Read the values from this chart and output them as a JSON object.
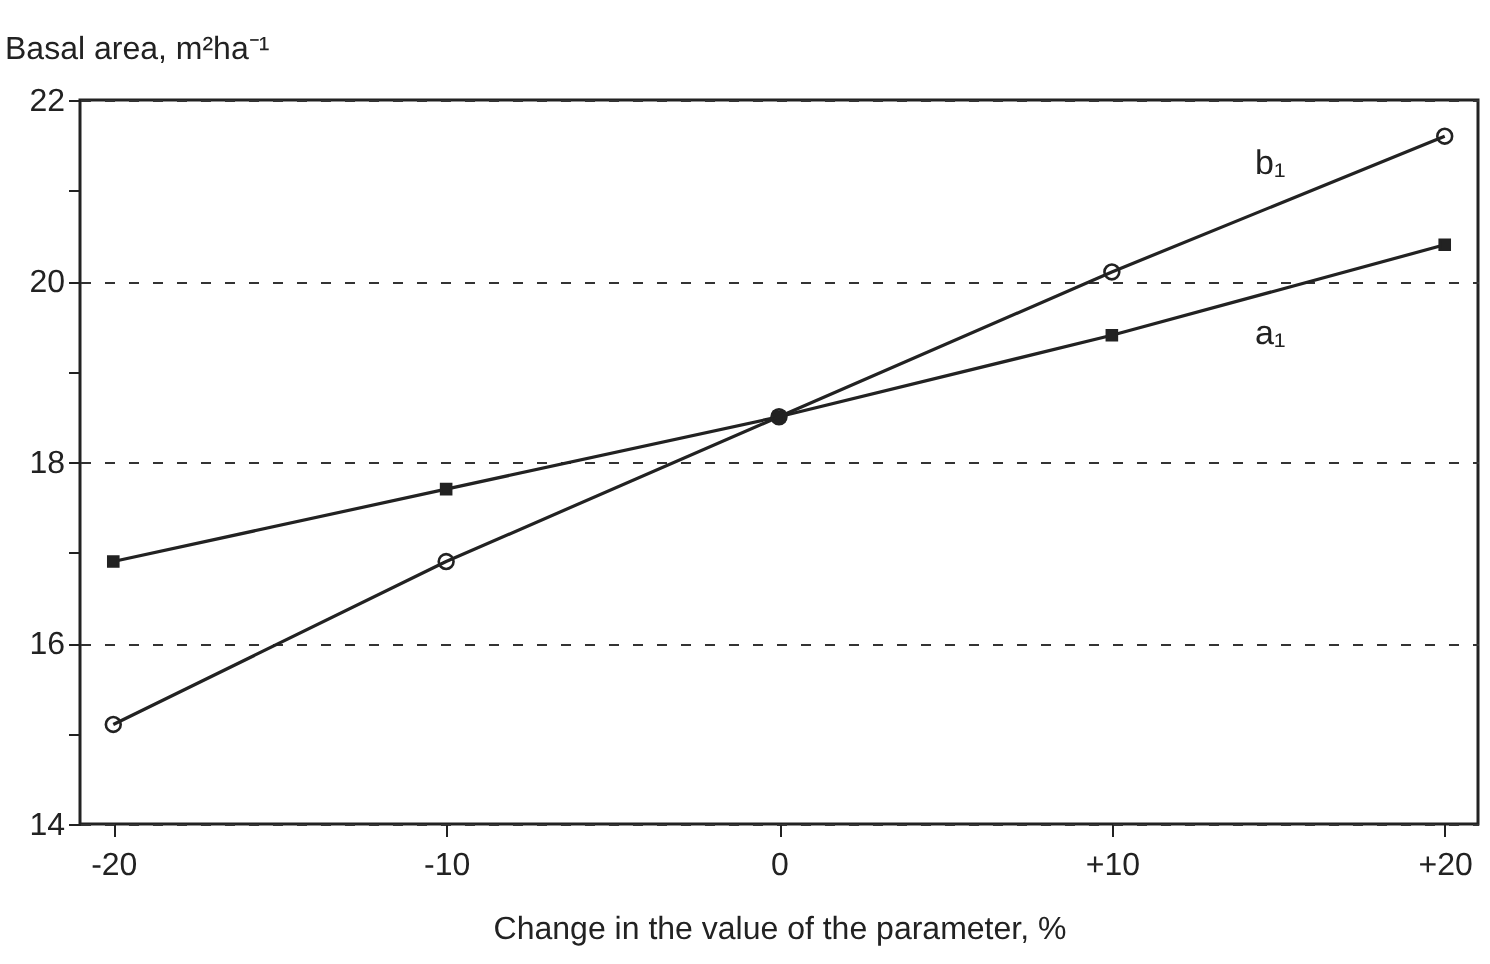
{
  "chart_data": {
    "type": "line",
    "xlabel": "Change in the value of the parameter, %",
    "ylabel": "Basal area, m²ha⁻¹",
    "x": [
      -20,
      -10,
      0,
      10,
      20
    ],
    "series": [
      {
        "name": "b₁",
        "color": "#222222",
        "marker": "circle",
        "values": [
          15.1,
          16.9,
          18.5,
          20.1,
          21.6
        ]
      },
      {
        "name": "a₁",
        "color": "#222222",
        "marker": "square",
        "values": [
          16.9,
          17.7,
          18.5,
          19.4,
          20.4
        ]
      }
    ],
    "xlim": [
      -21,
      21
    ],
    "xticks": [
      {
        "value": -20,
        "label": "-20"
      },
      {
        "value": -10,
        "label": "-10"
      },
      0,
      {
        "value": 10,
        "label": "+10"
      },
      {
        "value": 20,
        "label": "+20"
      }
    ],
    "ylim": [
      14,
      22
    ],
    "yticks": [
      14,
      {
        "value": 15,
        "label": null
      },
      16,
      {
        "value": 17,
        "label": null
      },
      18,
      {
        "value": 19,
        "label": null
      },
      20,
      {
        "value": 21,
        "label": null
      },
      22
    ],
    "grid": "y",
    "line_style": "solid"
  }
}
